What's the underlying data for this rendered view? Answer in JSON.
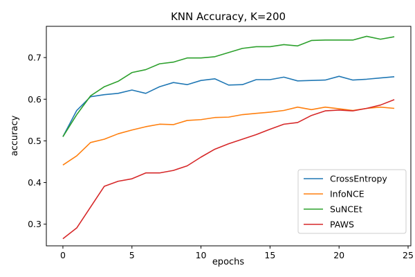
{
  "chart_data": {
    "type": "line",
    "title": "KNN Accuracy, K=200",
    "xlabel": "epochs",
    "ylabel": "accuracy",
    "xlim": [
      -1.2,
      25.2
    ],
    "ylim": [
      0.248,
      0.775
    ],
    "xticks": [
      0,
      5,
      10,
      15,
      20,
      25
    ],
    "yticks": [
      0.3,
      0.4,
      0.5,
      0.6,
      0.7
    ],
    "grid": false,
    "legend_position": "lower-right",
    "x": [
      0,
      1,
      2,
      3,
      4,
      5,
      6,
      7,
      8,
      9,
      10,
      11,
      12,
      13,
      14,
      15,
      16,
      17,
      18,
      19,
      20,
      21,
      22,
      23,
      24
    ],
    "series": [
      {
        "name": "CrossEntropy",
        "color": "#1f77b4",
        "values": [
          0.51,
          0.573,
          0.606,
          0.611,
          0.614,
          0.622,
          0.614,
          0.63,
          0.64,
          0.635,
          0.645,
          0.649,
          0.634,
          0.635,
          0.647,
          0.647,
          0.653,
          0.644,
          0.645,
          0.646,
          0.655,
          0.646,
          0.648,
          0.651,
          0.654
        ]
      },
      {
        "name": "InfoNCE",
        "color": "#ff7f0e",
        "values": [
          0.442,
          0.464,
          0.496,
          0.504,
          0.517,
          0.526,
          0.534,
          0.54,
          0.539,
          0.549,
          0.551,
          0.556,
          0.557,
          0.563,
          0.566,
          0.569,
          0.573,
          0.581,
          0.575,
          0.581,
          0.577,
          0.573,
          0.578,
          0.581,
          0.578
        ]
      },
      {
        "name": "SuNCEt",
        "color": "#2ca02c",
        "values": [
          0.51,
          0.563,
          0.608,
          0.63,
          0.643,
          0.664,
          0.671,
          0.685,
          0.689,
          0.699,
          0.699,
          0.702,
          0.712,
          0.722,
          0.726,
          0.726,
          0.731,
          0.728,
          0.741,
          0.742,
          0.742,
          0.742,
          0.751,
          0.744,
          0.75
        ]
      },
      {
        "name": "PAWS",
        "color": "#d62728",
        "values": [
          0.265,
          0.291,
          0.341,
          0.391,
          0.403,
          0.409,
          0.423,
          0.423,
          0.429,
          0.44,
          0.461,
          0.48,
          0.493,
          0.504,
          0.515,
          0.528,
          0.54,
          0.544,
          0.561,
          0.572,
          0.574,
          0.572,
          0.578,
          0.586,
          0.599
        ]
      }
    ]
  }
}
